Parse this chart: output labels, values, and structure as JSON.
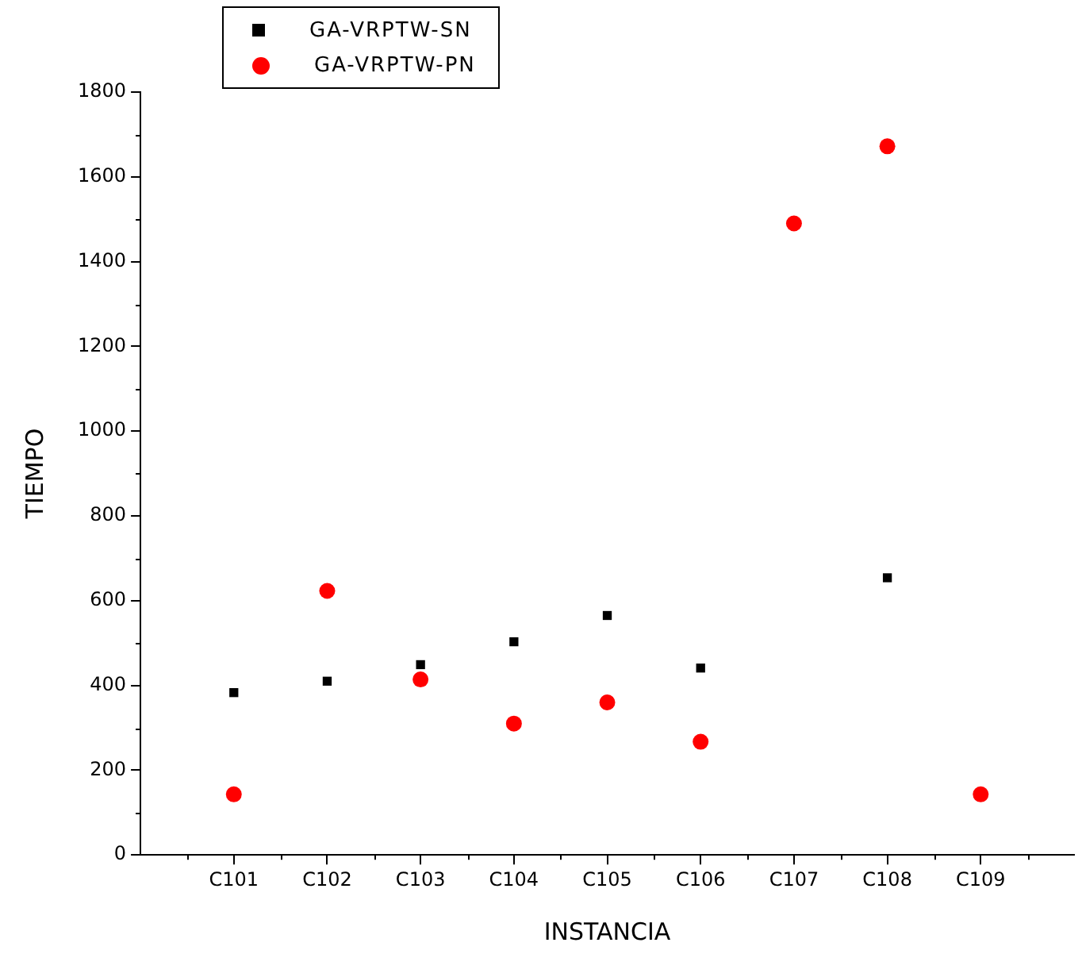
{
  "chart_data": {
    "type": "scatter",
    "xlabel": "INSTANCIA",
    "ylabel": "TIEMPO",
    "categories": [
      "C101",
      "C102",
      "C103",
      "C104",
      "C105",
      "C106",
      "C107",
      "C108",
      "C109"
    ],
    "series": [
      {
        "name": "GA-VRPTW-SN",
        "color": "#000000",
        "marker": "square",
        "values": [
          383,
          410,
          449,
          503,
          565,
          441,
          null,
          654,
          null
        ]
      },
      {
        "name": "GA-VRPTW-PN",
        "color": "#ff0000",
        "marker": "circle",
        "values": [
          143,
          623,
          414,
          310,
          360,
          267,
          1490,
          1672,
          143
        ]
      }
    ],
    "ylim": [
      0,
      1800
    ],
    "yticks": [
      0,
      200,
      400,
      600,
      800,
      1000,
      1200,
      1400,
      1600,
      1800
    ],
    "grid": false,
    "legend": "top left"
  }
}
